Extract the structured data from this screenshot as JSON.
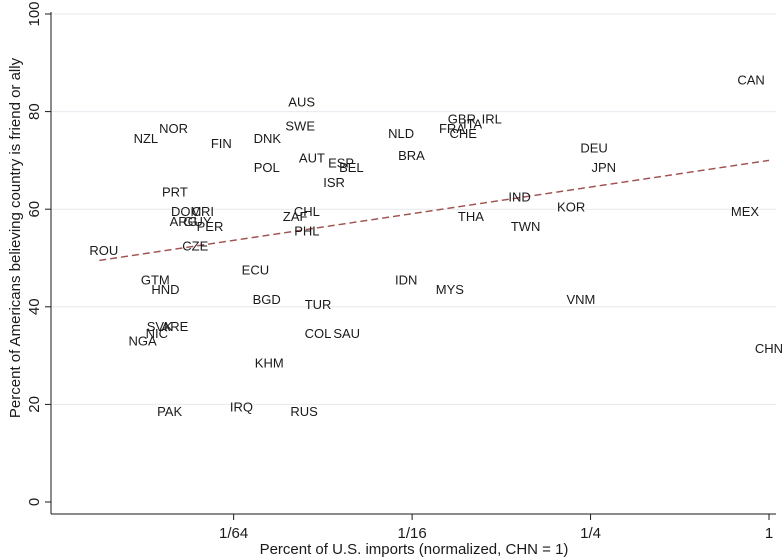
{
  "chart_data": {
    "type": "scatter",
    "title": "",
    "xlabel": "Percent of U.S. imports (normalized, CHN = 1)",
    "ylabel": "Percent of Americans believing country is friend or ally",
    "x_scale": "log2",
    "xlim": [
      0.0039,
      1.0
    ],
    "ylim": [
      0,
      100
    ],
    "x_ticks": [
      {
        "value": 0.015625,
        "label": "1/64"
      },
      {
        "value": 0.0625,
        "label": "1/16"
      },
      {
        "value": 0.25,
        "label": "1/4"
      },
      {
        "value": 1,
        "label": "1"
      }
    ],
    "y_ticks": [
      {
        "value": 0,
        "label": "0"
      },
      {
        "value": 20,
        "label": "20"
      },
      {
        "value": 40,
        "label": "40"
      },
      {
        "value": 60,
        "label": "60"
      },
      {
        "value": 80,
        "label": "80"
      },
      {
        "value": 100,
        "label": "100"
      }
    ],
    "grid": "horizontal",
    "marker": "country-code-labels",
    "fit_line": {
      "style": "dashed",
      "color": "#a0524f",
      "x": [
        0.0055,
        1.0
      ],
      "y": [
        49.5,
        70
      ]
    },
    "points": [
      {
        "label": "CAN",
        "x": 0.87,
        "y": 86.5
      },
      {
        "label": "AUS",
        "x": 0.0265,
        "y": 82
      },
      {
        "label": "GBR",
        "x": 0.092,
        "y": 78.5
      },
      {
        "label": "ITA",
        "x": 0.1,
        "y": 77.5
      },
      {
        "label": "IRL",
        "x": 0.116,
        "y": 78.5
      },
      {
        "label": "NOR",
        "x": 0.0098,
        "y": 76.5
      },
      {
        "label": "SWE",
        "x": 0.0262,
        "y": 77
      },
      {
        "label": "FRA",
        "x": 0.0852,
        "y": 76.5
      },
      {
        "label": "CHE",
        "x": 0.093,
        "y": 75.5
      },
      {
        "label": "NZL",
        "x": 0.0079,
        "y": 74.5
      },
      {
        "label": "NLD",
        "x": 0.0574,
        "y": 75.5
      },
      {
        "label": "DNK",
        "x": 0.0203,
        "y": 74.5
      },
      {
        "label": "FIN",
        "x": 0.0142,
        "y": 73.5
      },
      {
        "label": "DEU",
        "x": 0.257,
        "y": 72.5
      },
      {
        "label": "BRA",
        "x": 0.0622,
        "y": 71
      },
      {
        "label": "AUT",
        "x": 0.0287,
        "y": 70.5
      },
      {
        "label": "ESP",
        "x": 0.036,
        "y": 69.5
      },
      {
        "label": "POL",
        "x": 0.0202,
        "y": 68.5
      },
      {
        "label": "BEL",
        "x": 0.039,
        "y": 68.5
      },
      {
        "label": "JPN",
        "x": 0.277,
        "y": 68.5
      },
      {
        "label": "ISR",
        "x": 0.0341,
        "y": 65.5
      },
      {
        "label": "PRT",
        "x": 0.0099,
        "y": 63.5
      },
      {
        "label": "IND",
        "x": 0.144,
        "y": 62.5
      },
      {
        "label": "KOR",
        "x": 0.215,
        "y": 60.5
      },
      {
        "label": "DOM",
        "x": 0.0108,
        "y": 59.5
      },
      {
        "label": "CRI",
        "x": 0.0123,
        "y": 59.5
      },
      {
        "label": "CHL",
        "x": 0.0276,
        "y": 59.5
      },
      {
        "label": "MEX",
        "x": 0.83,
        "y": 59.5
      },
      {
        "label": "ZAF",
        "x": 0.0252,
        "y": 58.5
      },
      {
        "label": "THA",
        "x": 0.0987,
        "y": 58.5
      },
      {
        "label": "ARG",
        "x": 0.0106,
        "y": 57.5
      },
      {
        "label": "GUY",
        "x": 0.0118,
        "y": 57.5
      },
      {
        "label": "PER",
        "x": 0.013,
        "y": 56.5
      },
      {
        "label": "TWN",
        "x": 0.151,
        "y": 56.5
      },
      {
        "label": "PHL",
        "x": 0.0276,
        "y": 55.5
      },
      {
        "label": "CZE",
        "x": 0.0116,
        "y": 52.5
      },
      {
        "label": "ROU",
        "x": 0.0057,
        "y": 51.5
      },
      {
        "label": "ECU",
        "x": 0.0185,
        "y": 47.5
      },
      {
        "label": "GTM",
        "x": 0.0085,
        "y": 45.5
      },
      {
        "label": "IDN",
        "x": 0.0597,
        "y": 45.5
      },
      {
        "label": "HND",
        "x": 0.0092,
        "y": 43.5
      },
      {
        "label": "MYS",
        "x": 0.0838,
        "y": 43.5
      },
      {
        "label": "BGD",
        "x": 0.0202,
        "y": 41.5
      },
      {
        "label": "VNM",
        "x": 0.232,
        "y": 41.5
      },
      {
        "label": "TUR",
        "x": 0.0301,
        "y": 40.5
      },
      {
        "label": "SVK",
        "x": 0.0088,
        "y": 36
      },
      {
        "label": "ARE",
        "x": 0.0099,
        "y": 36
      },
      {
        "label": "NIC",
        "x": 0.0086,
        "y": 34.5
      },
      {
        "label": "COL",
        "x": 0.0301,
        "y": 34.5
      },
      {
        "label": "SAU",
        "x": 0.0376,
        "y": 34.5
      },
      {
        "label": "NGA",
        "x": 0.0077,
        "y": 33
      },
      {
        "label": "CHN",
        "x": 1.0,
        "y": 31.5
      },
      {
        "label": "KHM",
        "x": 0.0206,
        "y": 28.5
      },
      {
        "label": "IRQ",
        "x": 0.0166,
        "y": 19.5
      },
      {
        "label": "PAK",
        "x": 0.0095,
        "y": 18.5
      },
      {
        "label": "RUS",
        "x": 0.027,
        "y": 18.5
      }
    ]
  },
  "colors": {
    "text": "#1a1a1a",
    "axis": "#1a1a1a",
    "grid": "#e6e9ee",
    "fit": "#a0524f",
    "background": "#ffffff"
  }
}
